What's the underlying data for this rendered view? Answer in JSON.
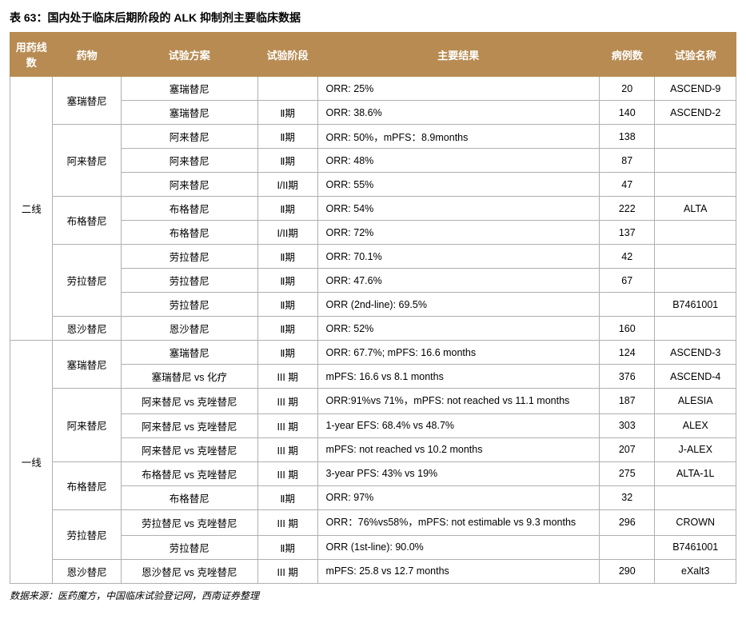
{
  "title": "表 63：国内处于临床后期阶段的 ALK 抑制剂主要临床数据",
  "footnote": "数据来源：医药魔方，中国临床试验登记网，西南证券整理",
  "headers": {
    "c1": "用药线数",
    "c2": "药物",
    "c3": "试验方案",
    "c4": "试验阶段",
    "c5": "主要结果",
    "c6": "病例数",
    "c7": "试验名称"
  },
  "colors": {
    "header_bg": "#b78b52",
    "header_text": "#ffffff",
    "border": "#b0b0b0",
    "text": "#000000",
    "bg": "#ffffff"
  },
  "groups": [
    {
      "line": "二线",
      "drugs": [
        {
          "drug": "塞瑞替尼",
          "trials": [
            {
              "plan": "塞瑞替尼",
              "phase": "",
              "result": "ORR: 25%",
              "n": "20",
              "name": "ASCEND-9"
            },
            {
              "plan": "塞瑞替尼",
              "phase": "Ⅱ期",
              "result": "ORR: 38.6%",
              "n": "140",
              "name": "ASCEND-2"
            }
          ]
        },
        {
          "drug": "阿来替尼",
          "trials": [
            {
              "plan": "阿来替尼",
              "phase": "Ⅱ期",
              "result": "ORR: 50%，mPFS：8.9months",
              "n": "138",
              "name": ""
            },
            {
              "plan": "阿来替尼",
              "phase": "Ⅱ期",
              "result": "ORR: 48%",
              "n": "87",
              "name": ""
            },
            {
              "plan": "阿来替尼",
              "phase": "I/II期",
              "result": "ORR: 55%",
              "n": "47",
              "name": ""
            }
          ]
        },
        {
          "drug": "布格替尼",
          "trials": [
            {
              "plan": "布格替尼",
              "phase": "Ⅱ期",
              "result": "ORR: 54%",
              "n": "222",
              "name": "ALTA"
            },
            {
              "plan": "布格替尼",
              "phase": "I/II期",
              "result": "ORR: 72%",
              "n": "137",
              "name": ""
            }
          ]
        },
        {
          "drug": "劳拉替尼",
          "trials": [
            {
              "plan": "劳拉替尼",
              "phase": "Ⅱ期",
              "result": "ORR: 70.1%",
              "n": "42",
              "name": ""
            },
            {
              "plan": "劳拉替尼",
              "phase": "Ⅱ期",
              "result": "ORR: 47.6%",
              "n": "67",
              "name": ""
            },
            {
              "plan": "劳拉替尼",
              "phase": "Ⅱ期",
              "result": "ORR (2nd-line): 69.5%",
              "n": "",
              "name": "B7461001"
            }
          ]
        },
        {
          "drug": "恩沙替尼",
          "trials": [
            {
              "plan": "恩沙替尼",
              "phase": "Ⅱ期",
              "result": "ORR: 52%",
              "n": "160",
              "name": ""
            }
          ]
        }
      ]
    },
    {
      "line": "一线",
      "drugs": [
        {
          "drug": "塞瑞替尼",
          "trials": [
            {
              "plan": "塞瑞替尼",
              "phase": "Ⅱ期",
              "result": "ORR: 67.7%; mPFS: 16.6 months",
              "n": "124",
              "name": "ASCEND-3"
            },
            {
              "plan": "塞瑞替尼 vs 化疗",
              "phase": "III 期",
              "result": "mPFS: 16.6 vs 8.1 months",
              "n": "376",
              "name": "ASCEND-4"
            }
          ]
        },
        {
          "drug": "阿来替尼",
          "trials": [
            {
              "plan": "阿来替尼 vs 克唑替尼",
              "phase": "III 期",
              "result": "ORR:91%vs 71%，mPFS: not reached vs 11.1 months",
              "n": "187",
              "name": "ALESIA",
              "tall": true
            },
            {
              "plan": "阿来替尼 vs 克唑替尼",
              "phase": "III 期",
              "result": "1-year EFS: 68.4% vs 48.7%",
              "n": "303",
              "name": "ALEX"
            },
            {
              "plan": "阿来替尼 vs 克唑替尼",
              "phase": "III 期",
              "result": "mPFS: not reached vs 10.2 months",
              "n": "207",
              "name": "J-ALEX"
            }
          ]
        },
        {
          "drug": "布格替尼",
          "trials": [
            {
              "plan": "布格替尼 vs 克唑替尼",
              "phase": "III 期",
              "result": "3-year PFS: 43% vs 19%",
              "n": "275",
              "name": "ALTA-1L"
            },
            {
              "plan": "布格替尼",
              "phase": "Ⅱ期",
              "result": "ORR: 97%",
              "n": "32",
              "name": ""
            }
          ]
        },
        {
          "drug": "劳拉替尼",
          "trials": [
            {
              "plan": "劳拉替尼 vs 克唑替尼",
              "phase": "III 期",
              "result": "ORR：76%vs58%，mPFS: not estimable vs 9.3 months",
              "n": "296",
              "name": "CROWN",
              "tall": true
            },
            {
              "plan": "劳拉替尼",
              "phase": "Ⅱ期",
              "result": "ORR (1st-line): 90.0%",
              "n": "",
              "name": "B7461001"
            }
          ]
        },
        {
          "drug": "恩沙替尼",
          "trials": [
            {
              "plan": "恩沙替尼 vs 克唑替尼",
              "phase": "III 期",
              "result": "mPFS: 25.8 vs 12.7 months",
              "n": "290",
              "name": "eXalt3"
            }
          ]
        }
      ]
    }
  ]
}
